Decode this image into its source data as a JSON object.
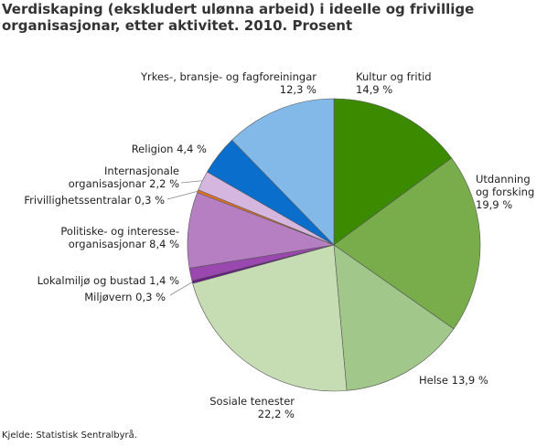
{
  "chart_data": {
    "type": "pie",
    "title": "Verdiskaping (ekskludert ulønna arbeid) i ideelle og frivillige organisasjonar, etter aktivitet. 2010. Prosent",
    "unit": "%",
    "slices": [
      {
        "name": "Kultur og fritid",
        "value": 14.9,
        "label": "14,9 %",
        "color": "#3b8a00"
      },
      {
        "name": "Utdanning og forsking",
        "value": 19.9,
        "label": "19,9 %",
        "color": "#79ad4c"
      },
      {
        "name": "Helse",
        "value": 13.9,
        "label": "13,9 %",
        "color": "#a1c88a"
      },
      {
        "name": "Sosiale tenester",
        "value": 22.2,
        "label": "22,2 %",
        "color": "#c6ddb4"
      },
      {
        "name": "Miljøvern",
        "value": 0.3,
        "label": "0,3 %",
        "color": "#6a1a8a"
      },
      {
        "name": "Lokalmiljø og bustad",
        "value": 1.4,
        "label": "1,4 %",
        "color": "#9a47b0"
      },
      {
        "name": "Politiske- og interesse-organisasjonar",
        "value": 8.4,
        "label": "8,4 %",
        "color": "#b57fc2"
      },
      {
        "name": "Frivillighetssentralar",
        "value": 0.3,
        "label": "0,3 %",
        "color": "#e8731c"
      },
      {
        "name": "Internasjonale organisasjonar",
        "value": 2.2,
        "label": "2,2 %",
        "color": "#d5b6de"
      },
      {
        "name": "Religion",
        "value": 4.4,
        "label": "4,4 %",
        "color": "#0a6fcc"
      },
      {
        "name": "Yrkes-, bransje- og fagforeiningar",
        "value": 12.3,
        "label": "12,3 %",
        "color": "#82b9e8"
      }
    ],
    "labels": [
      {
        "line1": "Kultur og fritid",
        "line2": "14,9 %"
      },
      {
        "line1": "Utdanning",
        "line2": "og forsking",
        "line3": "19,9 %"
      },
      {
        "line1": "Helse 13,9 %"
      },
      {
        "line1": "Sosiale tenester",
        "line2": "22,2 %"
      },
      {
        "line1": "Miljøvern 0,3 %"
      },
      {
        "line1": "Lokalmiljø og bustad 1,4 %"
      },
      {
        "line1": "Politiske- og interesse-",
        "line2": "organisasjonar 8,4 %"
      },
      {
        "line1": "Frivillighetssentralar 0,3 %"
      },
      {
        "line1": "Internasjonale",
        "line2": "organisasjonar 2,2 %"
      },
      {
        "line1": "Religion 4,4 %"
      },
      {
        "line1": "Yrkes-, bransje- og fagforeiningar",
        "line2": "12,3 %"
      }
    ]
  },
  "source": "Kjelde: Statistisk Sentralbyrå."
}
